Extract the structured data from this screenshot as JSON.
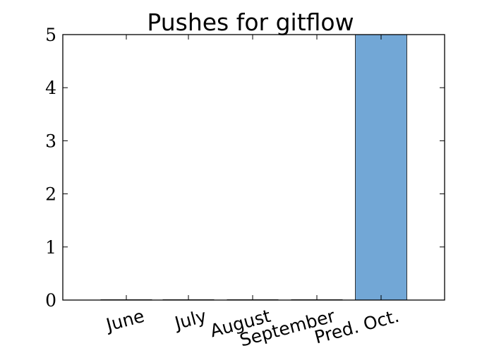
{
  "chart_data": {
    "type": "bar",
    "title": "Pushes for gitflow",
    "categories": [
      "June",
      "July",
      "August",
      "September",
      "Pred. Oct."
    ],
    "values": [
      0,
      0,
      0,
      0,
      5
    ],
    "xlabel": "",
    "ylabel": "",
    "ylim": [
      0,
      5
    ],
    "yticks": [
      0,
      1,
      2,
      3,
      4,
      5
    ],
    "grid": false,
    "bar_color": "#72a7d6",
    "edge_color": "#333333"
  }
}
